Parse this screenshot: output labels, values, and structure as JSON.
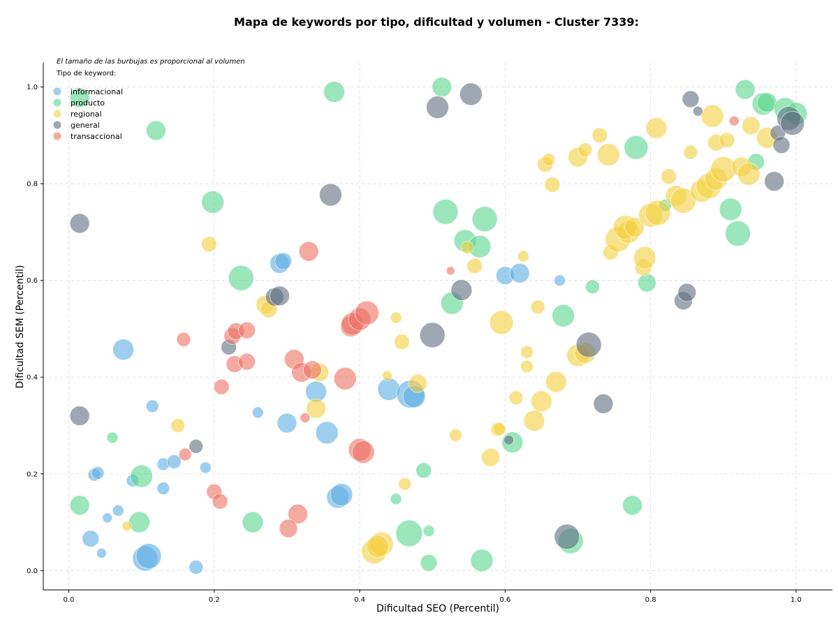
{
  "chart_data": {
    "type": "scatter",
    "title": "Mapa de keywords por tipo, dificultad y volumen - Cluster 7339:",
    "xlabel": "Dificultad SEO (Percentil)",
    "ylabel": "Dificultad SEM (Percentil)",
    "note": "El tamaño de las burbujas es proporcional al volumen",
    "legend_title": "Tipo de keyword:",
    "legend_position": "top-left",
    "xlim": [
      -0.035,
      1.05
    ],
    "ylim": [
      -0.04,
      1.05
    ],
    "xticks": [
      "0.0",
      "0.2",
      "0.4",
      "0.6",
      "0.8",
      "1.0"
    ],
    "yticks": [
      "0.0",
      "0.2",
      "0.4",
      "0.6",
      "0.8",
      "1.0"
    ],
    "grid": true,
    "series": [
      {
        "name": "informacional",
        "color": "#5DADE2",
        "points": [
          [
            0.29,
            0.635,
            14
          ],
          [
            0.295,
            0.64,
            12
          ],
          [
            0.075,
            0.457,
            15
          ],
          [
            0.115,
            0.34,
            9
          ],
          [
            0.34,
            0.37,
            15
          ],
          [
            0.355,
            0.285,
            16
          ],
          [
            0.3,
            0.305,
            14
          ],
          [
            0.44,
            0.375,
            16
          ],
          [
            0.47,
            0.365,
            20
          ],
          [
            0.475,
            0.36,
            16
          ],
          [
            0.6,
            0.61,
            13
          ],
          [
            0.62,
            0.615,
            14
          ],
          [
            0.675,
            0.6,
            8
          ],
          [
            0.035,
            0.198,
            9
          ],
          [
            0.04,
            0.202,
            9
          ],
          [
            0.088,
            0.186,
            9
          ],
          [
            0.13,
            0.22,
            9
          ],
          [
            0.145,
            0.225,
            10
          ],
          [
            0.13,
            0.17,
            9
          ],
          [
            0.188,
            0.213,
            8
          ],
          [
            0.26,
            0.327,
            8
          ],
          [
            0.37,
            0.152,
            16
          ],
          [
            0.375,
            0.157,
            16
          ],
          [
            0.068,
            0.124,
            8
          ],
          [
            0.053,
            0.109,
            7
          ],
          [
            0.03,
            0.066,
            12
          ],
          [
            0.045,
            0.036,
            7
          ],
          [
            0.105,
            0.025,
            18
          ],
          [
            0.11,
            0.03,
            18
          ],
          [
            0.175,
            0.007,
            10
          ]
        ]
      },
      {
        "name": "producto",
        "color": "#58D68D",
        "points": [
          [
            0.015,
            0.978,
            14
          ],
          [
            0.12,
            0.91,
            14
          ],
          [
            0.198,
            0.762,
            16
          ],
          [
            0.237,
            0.605,
            18
          ],
          [
            0.365,
            0.99,
            15
          ],
          [
            0.513,
            1.0,
            14
          ],
          [
            0.518,
            0.742,
            18
          ],
          [
            0.545,
            0.682,
            16
          ],
          [
            0.565,
            0.67,
            16
          ],
          [
            0.572,
            0.727,
            18
          ],
          [
            0.527,
            0.553,
            16
          ],
          [
            0.68,
            0.527,
            16
          ],
          [
            0.72,
            0.587,
            10
          ],
          [
            0.78,
            0.875,
            17
          ],
          [
            0.795,
            0.595,
            13
          ],
          [
            0.82,
            0.755,
            9
          ],
          [
            0.91,
            0.747,
            16
          ],
          [
            0.92,
            0.697,
            18
          ],
          [
            0.93,
            0.995,
            14
          ],
          [
            0.945,
            0.845,
            12
          ],
          [
            0.955,
            0.965,
            16
          ],
          [
            0.96,
            0.968,
            14
          ],
          [
            0.985,
            0.955,
            16
          ],
          [
            1.0,
            0.945,
            16
          ],
          [
            0.06,
            0.275,
            8
          ],
          [
            0.1,
            0.195,
            16
          ],
          [
            0.015,
            0.135,
            14
          ],
          [
            0.097,
            0.1,
            15
          ],
          [
            0.253,
            0.1,
            15
          ],
          [
            0.45,
            0.148,
            8
          ],
          [
            0.488,
            0.207,
            11
          ],
          [
            0.468,
            0.077,
            19
          ],
          [
            0.495,
            0.082,
            8
          ],
          [
            0.495,
            0.016,
            12
          ],
          [
            0.568,
            0.021,
            16
          ],
          [
            0.61,
            0.265,
            15
          ],
          [
            0.69,
            0.061,
            18
          ],
          [
            0.775,
            0.135,
            14
          ]
        ]
      },
      {
        "name": "regional",
        "color": "#F4D03F",
        "points": [
          [
            0.193,
            0.675,
            11
          ],
          [
            0.27,
            0.55,
            13
          ],
          [
            0.275,
            0.54,
            12
          ],
          [
            0.345,
            0.41,
            13
          ],
          [
            0.34,
            0.335,
            14
          ],
          [
            0.45,
            0.523,
            8
          ],
          [
            0.458,
            0.473,
            11
          ],
          [
            0.438,
            0.403,
            7
          ],
          [
            0.48,
            0.387,
            13
          ],
          [
            0.15,
            0.3,
            10
          ],
          [
            0.08,
            0.092,
            7
          ],
          [
            0.548,
            0.668,
            9
          ],
          [
            0.558,
            0.63,
            11
          ],
          [
            0.595,
            0.513,
            17
          ],
          [
            0.625,
            0.65,
            8
          ],
          [
            0.645,
            0.545,
            10
          ],
          [
            0.63,
            0.452,
            9
          ],
          [
            0.63,
            0.422,
            9
          ],
          [
            0.67,
            0.39,
            15
          ],
          [
            0.615,
            0.357,
            10
          ],
          [
            0.65,
            0.35,
            15
          ],
          [
            0.64,
            0.31,
            15
          ],
          [
            0.58,
            0.234,
            13
          ],
          [
            0.59,
            0.292,
            10
          ],
          [
            0.592,
            0.293,
            9
          ],
          [
            0.532,
            0.28,
            9
          ],
          [
            0.462,
            0.179,
            9
          ],
          [
            0.42,
            0.04,
            18
          ],
          [
            0.43,
            0.055,
            17
          ],
          [
            0.425,
            0.05,
            16
          ],
          [
            0.655,
            0.84,
            11
          ],
          [
            0.66,
            0.85,
            9
          ],
          [
            0.665,
            0.798,
            11
          ],
          [
            0.7,
            0.855,
            14
          ],
          [
            0.71,
            0.87,
            10
          ],
          [
            0.73,
            0.9,
            11
          ],
          [
            0.742,
            0.86,
            16
          ],
          [
            0.745,
            0.658,
            11
          ],
          [
            0.755,
            0.685,
            18
          ],
          [
            0.77,
            0.7,
            16
          ],
          [
            0.765,
            0.71,
            17
          ],
          [
            0.778,
            0.71,
            14
          ],
          [
            0.8,
            0.735,
            17
          ],
          [
            0.81,
            0.74,
            18
          ],
          [
            0.79,
            0.627,
            12
          ],
          [
            0.792,
            0.647,
            16
          ],
          [
            0.808,
            0.915,
            15
          ],
          [
            0.825,
            0.815,
            11
          ],
          [
            0.835,
            0.775,
            15
          ],
          [
            0.845,
            0.765,
            18
          ],
          [
            0.855,
            0.865,
            10
          ],
          [
            0.87,
            0.785,
            16
          ],
          [
            0.88,
            0.795,
            18
          ],
          [
            0.885,
            0.94,
            16
          ],
          [
            0.89,
            0.885,
            12
          ],
          [
            0.89,
            0.81,
            16
          ],
          [
            0.9,
            0.83,
            18
          ],
          [
            0.905,
            0.89,
            11
          ],
          [
            0.925,
            0.835,
            14
          ],
          [
            0.935,
            0.82,
            16
          ],
          [
            0.938,
            0.92,
            13
          ],
          [
            0.96,
            0.895,
            15
          ],
          [
            0.7,
            0.445,
            16
          ],
          [
            0.71,
            0.45,
            15
          ]
        ]
      },
      {
        "name": "general",
        "color": "#5D6D7E",
        "points": [
          [
            0.015,
            0.718,
            14
          ],
          [
            0.015,
            0.32,
            14
          ],
          [
            0.175,
            0.257,
            10
          ],
          [
            0.22,
            0.462,
            11
          ],
          [
            0.283,
            0.566,
            13
          ],
          [
            0.29,
            0.568,
            14
          ],
          [
            0.36,
            0.777,
            16
          ],
          [
            0.5,
            0.487,
            18
          ],
          [
            0.507,
            0.958,
            16
          ],
          [
            0.553,
            0.985,
            16
          ],
          [
            0.54,
            0.58,
            15
          ],
          [
            0.715,
            0.467,
            18
          ],
          [
            0.735,
            0.345,
            14
          ],
          [
            0.605,
            0.27,
            7
          ],
          [
            0.685,
            0.07,
            18
          ],
          [
            0.845,
            0.558,
            13
          ],
          [
            0.85,
            0.575,
            13
          ],
          [
            0.855,
            0.975,
            12
          ],
          [
            0.865,
            0.95,
            7
          ],
          [
            0.97,
            0.805,
            14
          ],
          [
            0.975,
            0.905,
            11
          ],
          [
            0.98,
            0.88,
            12
          ],
          [
            0.99,
            0.935,
            17
          ],
          [
            0.995,
            0.925,
            17
          ]
        ]
      },
      {
        "name": "transaccional",
        "color": "#EC7063",
        "points": [
          [
            0.158,
            0.478,
            10
          ],
          [
            0.21,
            0.38,
            11
          ],
          [
            0.225,
            0.485,
            12
          ],
          [
            0.23,
            0.495,
            12
          ],
          [
            0.228,
            0.427,
            12
          ],
          [
            0.245,
            0.497,
            12
          ],
          [
            0.245,
            0.432,
            12
          ],
          [
            0.31,
            0.437,
            14
          ],
          [
            0.32,
            0.41,
            14
          ],
          [
            0.335,
            0.415,
            13
          ],
          [
            0.33,
            0.66,
            14
          ],
          [
            0.38,
            0.397,
            16
          ],
          [
            0.388,
            0.505,
            15
          ],
          [
            0.39,
            0.51,
            16
          ],
          [
            0.4,
            0.52,
            16
          ],
          [
            0.41,
            0.533,
            17
          ],
          [
            0.4,
            0.25,
            16
          ],
          [
            0.405,
            0.245,
            16
          ],
          [
            0.325,
            0.316,
            7
          ],
          [
            0.16,
            0.24,
            9
          ],
          [
            0.2,
            0.163,
            11
          ],
          [
            0.208,
            0.143,
            11
          ],
          [
            0.315,
            0.117,
            14
          ],
          [
            0.302,
            0.087,
            13
          ],
          [
            0.525,
            0.62,
            6
          ],
          [
            0.915,
            0.93,
            7
          ]
        ]
      }
    ]
  }
}
